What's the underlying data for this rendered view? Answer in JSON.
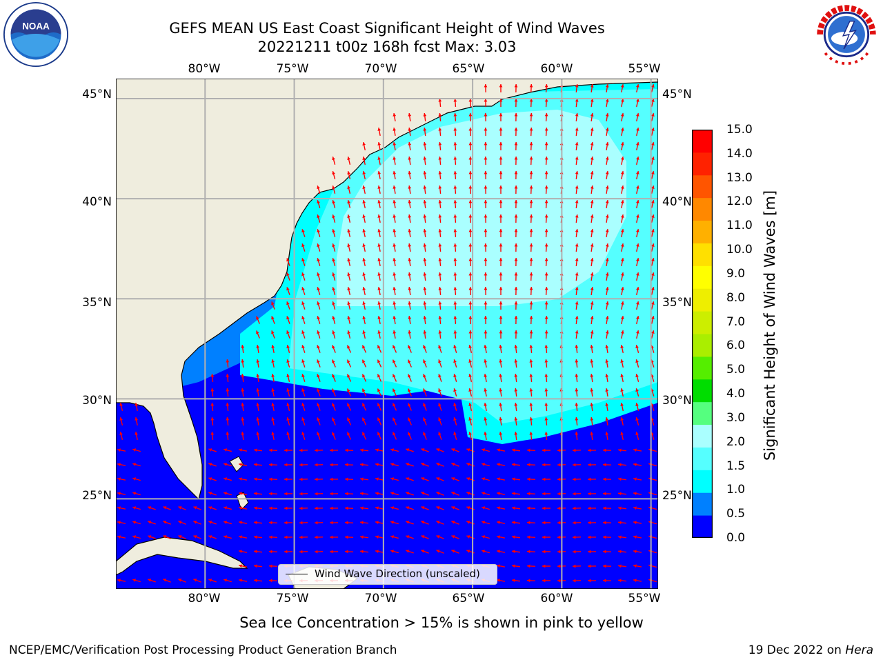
{
  "title": {
    "line1": "GEFS MEAN US East Coast Significant Height of Wind Waves",
    "line2": "20221211 t00z 168h fcst   Max: 3.03"
  },
  "map": {
    "lon_labels": [
      "80°W",
      "75°W",
      "70°W",
      "65°W",
      "60°W",
      "55°W"
    ],
    "lat_labels": [
      "45°N",
      "40°N",
      "35°N",
      "30°N",
      "25°N"
    ],
    "lon_range": [
      -85,
      -54.6
    ],
    "lat_range": [
      20.5,
      46
    ],
    "land_color": "#efedde",
    "gridline_color": "#b0b0b0",
    "arrow_color": "#ff0000",
    "legend_label": "Wind Wave Direction (unscaled)",
    "field_levels_colors": [
      "#0000ff",
      "#0080ff",
      "#00ffff",
      "#55ffff",
      "#aaffff"
    ]
  },
  "colorbar": {
    "title": "Significant Height of Wind Waves [m]",
    "ticks": [
      "0.0",
      "0.5",
      "1.0",
      "1.5",
      "2.0",
      "3.0",
      "4.0",
      "5.0",
      "6.0",
      "7.0",
      "8.0",
      "9.0",
      "10.0",
      "11.0",
      "12.0",
      "13.0",
      "14.0",
      "15.0"
    ],
    "colors": [
      "#0000ff",
      "#0080ff",
      "#00ffff",
      "#55ffff",
      "#aaffff",
      "#55ff7f",
      "#00dd00",
      "#55ee00",
      "#aaee00",
      "#ccee00",
      "#eeee00",
      "#ffff00",
      "#ffe000",
      "#ffb000",
      "#ff8800",
      "#ff5500",
      "#ff2200",
      "#ff0000"
    ]
  },
  "subtitle": "Sea Ice Concentration > 15% is shown in pink to yellow",
  "footer": {
    "left": "NCEP/EMC/Verification Post Processing Product Generation Branch",
    "right_prefix": "19 Dec 2022 on ",
    "right_host": "Hera"
  },
  "logos": {
    "noaa_text": "NOAA",
    "nws_text": "NATIONAL WEATHER SERVICE"
  }
}
